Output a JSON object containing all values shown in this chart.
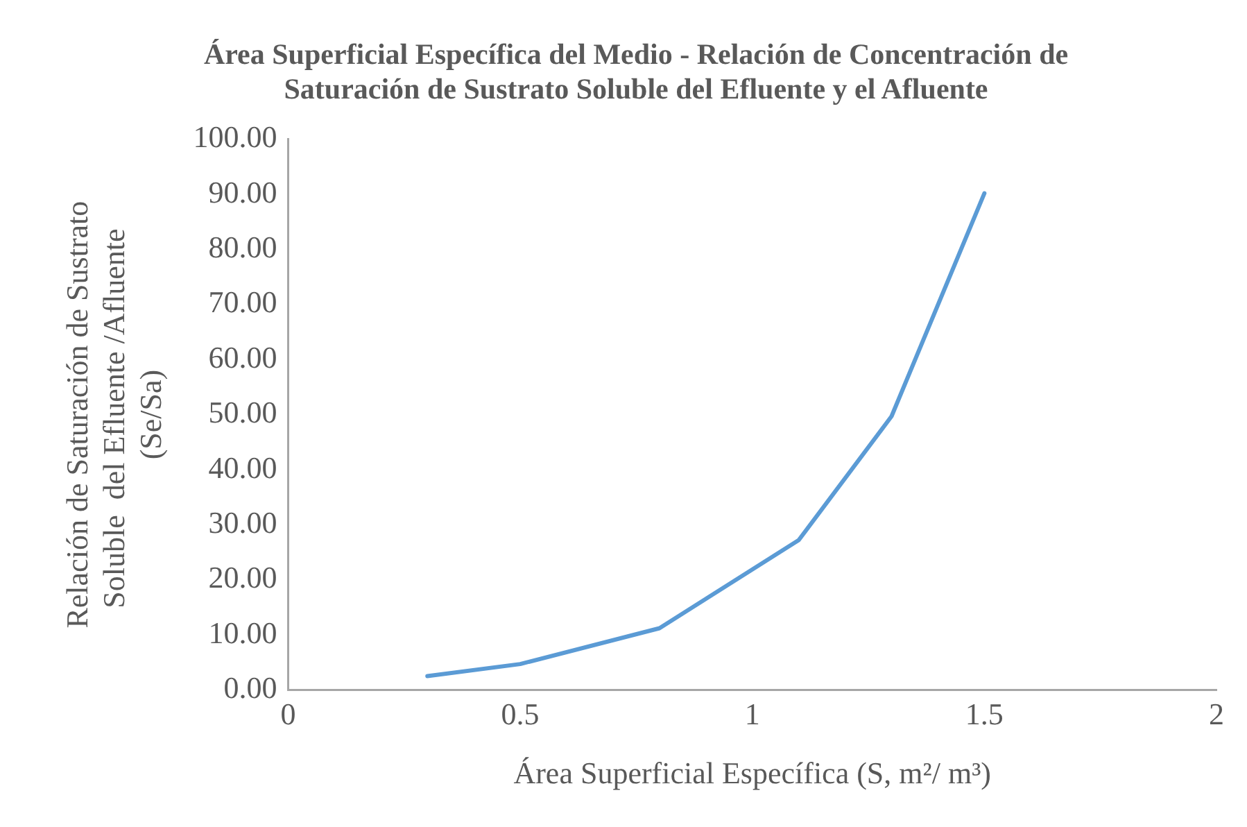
{
  "chart_data": {
    "type": "line",
    "title": "Área Superficial Específica del Medio - Relación de Concentración de Saturación de Sustrato Soluble del Efluente y el Afluente",
    "xlabel": "Área Superficial Específica (S, m²/ m³)",
    "ylabel": "Relación de Saturación de Sustrato Soluble  del Efluente /Afluente  (Se/Sa)",
    "x": [
      0.3,
      0.5,
      0.8,
      1.1,
      1.3,
      1.5
    ],
    "series": [
      {
        "color": "#5b9bd5",
        "values": [
          2.5,
          4.7,
          11.2,
          27.2,
          49.7,
          90.2
        ]
      }
    ],
    "xlim": [
      0,
      2
    ],
    "xticks": [
      0,
      0.5,
      1,
      1.5,
      2
    ],
    "ylim": [
      0,
      100
    ],
    "yticks": [
      {
        "value": 0,
        "label": "0.00"
      },
      {
        "value": 10,
        "label": "10.00"
      },
      {
        "value": 20,
        "label": "20.00"
      },
      {
        "value": 30,
        "label": "30.00"
      },
      {
        "value": 40,
        "label": "40.00"
      },
      {
        "value": 50,
        "label": "50.00"
      },
      {
        "value": 60,
        "label": "60.00"
      },
      {
        "value": 70,
        "label": "70.00"
      },
      {
        "value": 80,
        "label": "80.00"
      },
      {
        "value": 90,
        "label": "90.00"
      },
      {
        "value": 100,
        "label": "100.00"
      }
    ],
    "grid": false,
    "legend": false,
    "marker": "none",
    "line_style": "solid"
  }
}
